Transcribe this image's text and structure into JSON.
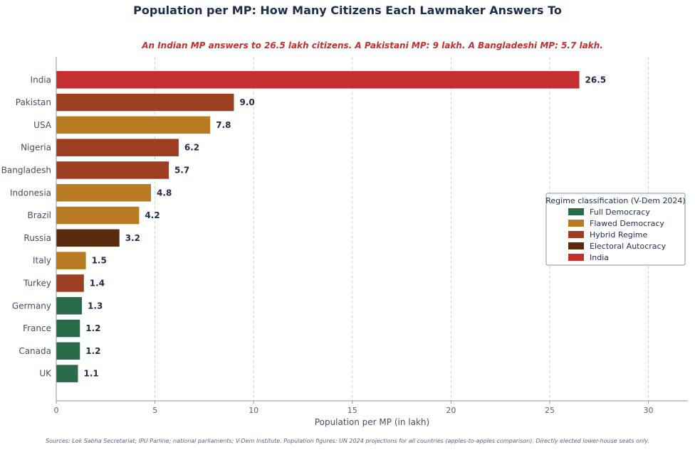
{
  "title": "Population per MP: How Many Citizens Each Lawmaker Answers To",
  "subtitle": "An Indian MP answers to 26.5 lakh citizens. A Pakistani MP: 9 lakh. A Bangladeshi MP: 5.7 lakh.",
  "source": "Sources: Lok Sabha Secretariat; IPU Parline; national parliaments; V-Dem Institute. Population figures: UN 2024 projections for all countries (apples-to-apples comparison). Directly elected lower-house seats only.",
  "chart_data": {
    "type": "bar",
    "orientation": "horizontal",
    "categories": [
      "India",
      "Pakistan",
      "USA",
      "Nigeria",
      "Bangladesh",
      "Indonesia",
      "Brazil",
      "Russia",
      "Italy",
      "Turkey",
      "Germany",
      "France",
      "Canada",
      "UK"
    ],
    "values": [
      26.5,
      9.0,
      7.8,
      6.2,
      5.7,
      4.8,
      4.2,
      3.2,
      1.5,
      1.4,
      1.3,
      1.2,
      1.2,
      1.1
    ],
    "value_labels": [
      "26.5",
      "9.0",
      "7.8",
      "6.2",
      "5.7",
      "4.8",
      "4.2",
      "3.2",
      "1.5",
      "1.4",
      "1.3",
      "1.2",
      "1.2",
      "1.1"
    ],
    "groups": [
      "India",
      "Hybrid Regime",
      "Flawed Democracy",
      "Hybrid Regime",
      "Hybrid Regime",
      "Flawed Democracy",
      "Flawed Democracy",
      "Electoral Autocracy",
      "Flawed Democracy",
      "Hybrid Regime",
      "Full Democracy",
      "Full Democracy",
      "Full Democracy",
      "Full Democracy"
    ],
    "xlabel": "Population per MP (in lakh)",
    "ylabel": "",
    "xlim": [
      0,
      32
    ],
    "xticks": [
      0,
      5,
      10,
      15,
      20,
      25,
      30
    ],
    "xtick_labels": [
      "0",
      "5",
      "10",
      "15",
      "20",
      "25",
      "30"
    ],
    "grid": "vertical dashed",
    "legend": {
      "title": "Regime classification (V-Dem 2024)",
      "placement": "center-right",
      "entries": [
        {
          "label": "Full Democracy",
          "color": "#2a6b4b"
        },
        {
          "label": "Flawed Democracy",
          "color": "#b87a22"
        },
        {
          "label": "Hybrid Regime",
          "color": "#9c3e21"
        },
        {
          "label": "Electoral Autocracy",
          "color": "#5a2c0e"
        },
        {
          "label": "India",
          "color": "#c62f30"
        }
      ]
    }
  }
}
